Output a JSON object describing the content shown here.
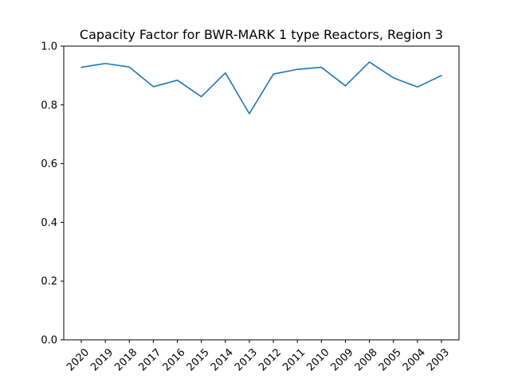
{
  "chart_data": {
    "type": "line",
    "title": "Capacity Factor for BWR-MARK 1 type Reactors, Region 3",
    "xlabel": "",
    "ylabel": "",
    "categories": [
      "2020",
      "2019",
      "2018",
      "2017",
      "2016",
      "2015",
      "2014",
      "2013",
      "2012",
      "2011",
      "2010",
      "2009",
      "2008",
      "2005",
      "2004",
      "2003"
    ],
    "series": [
      {
        "values": [
          0.928,
          0.941,
          0.929,
          0.862,
          0.884,
          0.828,
          0.909,
          0.77,
          0.905,
          0.921,
          0.928,
          0.865,
          0.946,
          0.892,
          0.861,
          0.9
        ]
      }
    ],
    "ylim": [
      0.0,
      1.0
    ],
    "yticks": [
      "0.0",
      "0.2",
      "0.4",
      "0.6",
      "0.8",
      "1.0"
    ],
    "grid": false,
    "legend": "none",
    "line_color": "#1f77b4"
  }
}
